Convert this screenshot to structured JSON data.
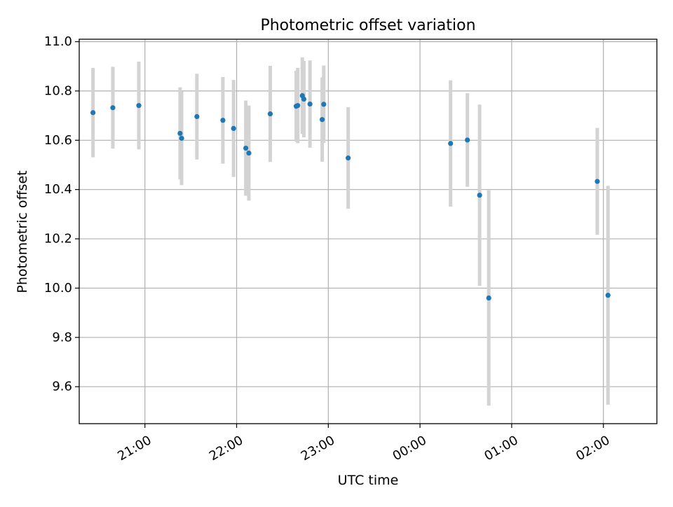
{
  "chart_data": {
    "type": "scatter",
    "title": "Photometric offset variation",
    "xlabel": "UTC time",
    "ylabel": "Photometric offset",
    "xlim": [
      "20:17",
      "02:35"
    ],
    "ylim": [
      9.45,
      11.01
    ],
    "grid": true,
    "x_ticks": [
      {
        "value": "21:00",
        "label": "21:00"
      },
      {
        "value": "22:00",
        "label": "22:00"
      },
      {
        "value": "23:00",
        "label": "23:00"
      },
      {
        "value": "00:00",
        "label": "00:00"
      },
      {
        "value": "01:00",
        "label": "01:00"
      },
      {
        "value": "02:00",
        "label": "02:00"
      }
    ],
    "y_ticks": [
      {
        "value": 9.6,
        "label": "9.6"
      },
      {
        "value": 9.8,
        "label": "9.8"
      },
      {
        "value": 10.0,
        "label": "10.0"
      },
      {
        "value": 10.2,
        "label": "10.2"
      },
      {
        "value": 10.4,
        "label": "10.4"
      },
      {
        "value": 10.6,
        "label": "10.6"
      },
      {
        "value": 10.8,
        "label": "10.8"
      },
      {
        "value": 11.0,
        "label": "11.0"
      }
    ],
    "marker_color": "#1f77b4",
    "errorbar_color": "#d3d3d3",
    "points": [
      {
        "time": "20:26",
        "y": 10.712,
        "yerr": 0.181
      },
      {
        "time": "20:39",
        "y": 10.732,
        "yerr": 0.166
      },
      {
        "time": "20:56",
        "y": 10.741,
        "yerr": 0.178
      },
      {
        "time": "21:23",
        "y": 10.628,
        "yerr": 0.187
      },
      {
        "time": "21:24",
        "y": 10.608,
        "yerr": 0.19
      },
      {
        "time": "21:34",
        "y": 10.696,
        "yerr": 0.174
      },
      {
        "time": "21:51",
        "y": 10.681,
        "yerr": 0.176
      },
      {
        "time": "21:58",
        "y": 10.648,
        "yerr": 0.197
      },
      {
        "time": "22:06",
        "y": 10.568,
        "yerr": 0.193
      },
      {
        "time": "22:08",
        "y": 10.548,
        "yerr": 0.193
      },
      {
        "time": "22:22",
        "y": 10.707,
        "yerr": 0.195
      },
      {
        "time": "22:39",
        "y": 10.738,
        "yerr": 0.144
      },
      {
        "time": "22:40",
        "y": 10.741,
        "yerr": 0.153
      },
      {
        "time": "22:43",
        "y": 10.781,
        "yerr": 0.155
      },
      {
        "time": "22:44",
        "y": 10.767,
        "yerr": 0.155
      },
      {
        "time": "22:48",
        "y": 10.747,
        "yerr": 0.177
      },
      {
        "time": "22:56",
        "y": 10.684,
        "yerr": 0.171
      },
      {
        "time": "22:57",
        "y": 10.746,
        "yerr": 0.157
      },
      {
        "time": "23:13",
        "y": 10.528,
        "yerr": 0.206
      },
      {
        "time": "00:20",
        "y": 10.587,
        "yerr": 0.256
      },
      {
        "time": "00:31",
        "y": 10.601,
        "yerr": 0.19
      },
      {
        "time": "00:39",
        "y": 10.377,
        "yerr": 0.368
      },
      {
        "time": "00:45",
        "y": 9.96,
        "yerr": 0.437
      },
      {
        "time": "01:56",
        "y": 10.433,
        "yerr": 0.217
      },
      {
        "time": "02:03",
        "y": 9.971,
        "yerr": 0.444
      }
    ]
  }
}
